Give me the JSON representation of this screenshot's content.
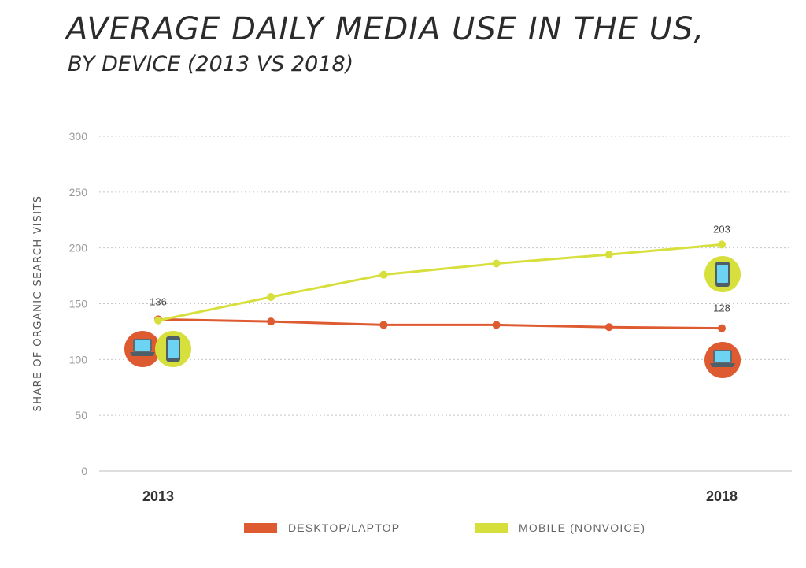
{
  "header": {
    "title": "AVERAGE DAILY MEDIA USE IN THE US,",
    "subtitle": "BY DEVICE (2013 VS 2018)"
  },
  "chart_data": {
    "type": "line",
    "ylabel": "SHARE OF ORGANIC SEARCH VISITS",
    "xlabel": "",
    "ylim": [
      0,
      300
    ],
    "yticks": [
      0,
      50,
      100,
      150,
      200,
      250,
      300
    ],
    "x": [
      0,
      1,
      2,
      3,
      4,
      5
    ],
    "x_tick_labels": [
      "2013",
      "",
      "",
      "",
      "",
      "2018"
    ],
    "grid": true,
    "legend_position": "bottom",
    "series": [
      {
        "name": "DESKTOP/LAPTOP",
        "color": "#de5a30",
        "values": [
          136,
          134,
          131,
          131,
          129,
          128
        ],
        "end_labels": [
          "136",
          "128"
        ],
        "icon": "laptop-icon"
      },
      {
        "name": "MOBILE (NONVOICE)",
        "color": "#d7df3c",
        "values": [
          135,
          156,
          176,
          186,
          194,
          203
        ],
        "end_labels": [
          "",
          "203"
        ],
        "icon": "smartphone-icon"
      }
    ]
  }
}
